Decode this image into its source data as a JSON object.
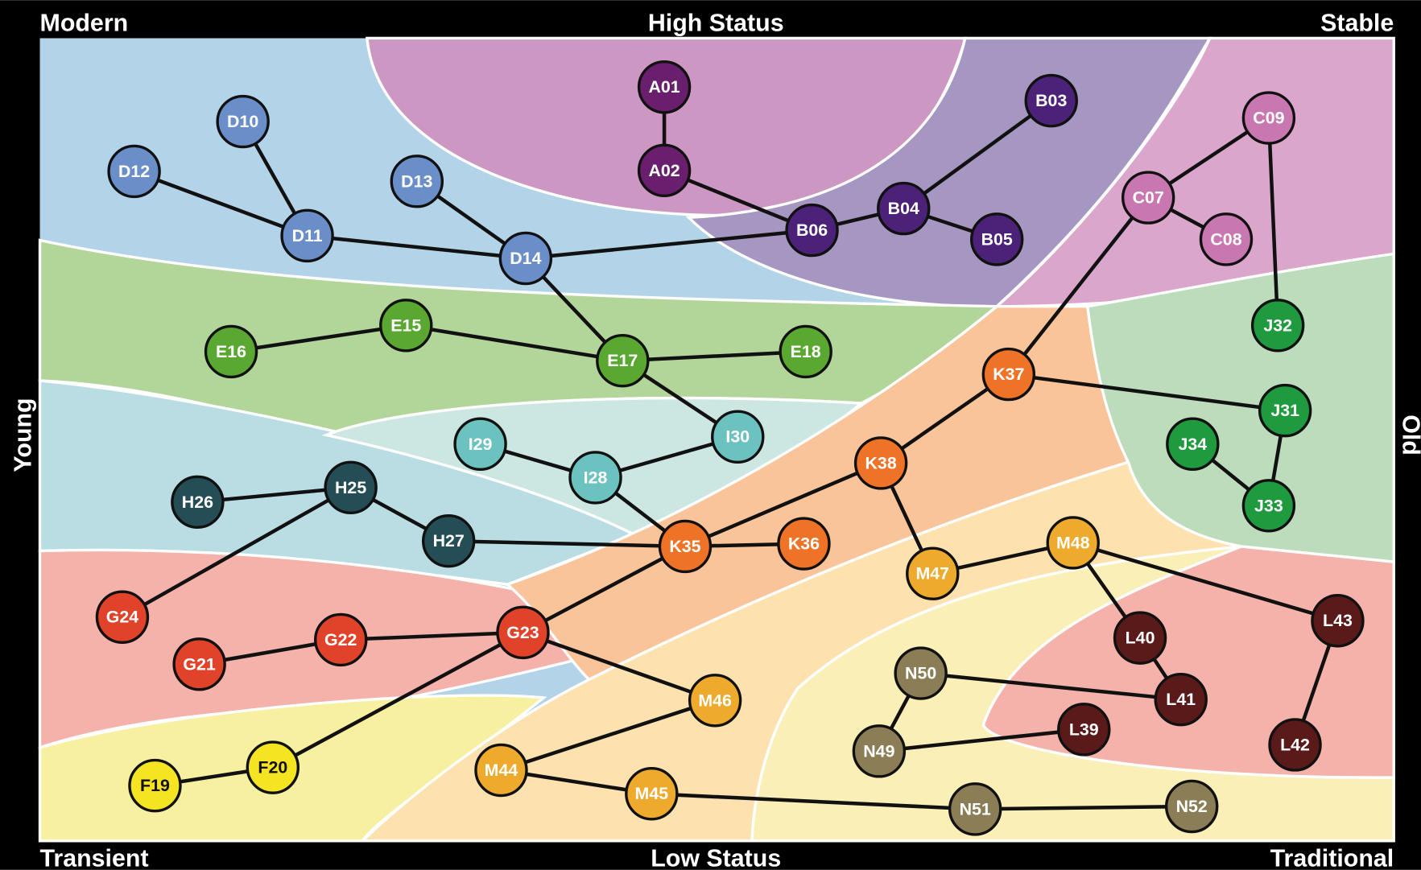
{
  "labels": {
    "top_left": "Modern",
    "top": "High Status",
    "top_right": "Stable",
    "left": "Young",
    "right": "Old",
    "bottom_left": "Transient",
    "bottom": "Low Status",
    "bottom_right": "Traditional"
  },
  "nodes": [
    {
      "label": "A01",
      "color": "#6a1f6e"
    },
    {
      "label": "A02",
      "color": "#6a1f6e"
    },
    {
      "label": "B03",
      "color": "#4b2277"
    },
    {
      "label": "B04",
      "color": "#4b2277"
    },
    {
      "label": "B05",
      "color": "#4b2277"
    },
    {
      "label": "B06",
      "color": "#4b2277"
    },
    {
      "label": "C07",
      "color": "#c877b0"
    },
    {
      "label": "C08",
      "color": "#c877b0"
    },
    {
      "label": "C09",
      "color": "#c877b0"
    },
    {
      "label": "D10",
      "color": "#6a8fc8"
    },
    {
      "label": "D11",
      "color": "#6a8fc8"
    },
    {
      "label": "D12",
      "color": "#6a8fc8"
    },
    {
      "label": "D13",
      "color": "#6a8fc8"
    },
    {
      "label": "D14",
      "color": "#6a8fc8"
    },
    {
      "label": "E15",
      "color": "#5aa832"
    },
    {
      "label": "E16",
      "color": "#5aa832"
    },
    {
      "label": "E17",
      "color": "#5aa832"
    },
    {
      "label": "E18",
      "color": "#5aa832"
    },
    {
      "label": "F19",
      "color": "#f5e422"
    },
    {
      "label": "F20",
      "color": "#f5e422"
    },
    {
      "label": "G21",
      "color": "#e0432a"
    },
    {
      "label": "G22",
      "color": "#e0432a"
    },
    {
      "label": "G23",
      "color": "#e0432a"
    },
    {
      "label": "G24",
      "color": "#e0432a"
    },
    {
      "label": "H25",
      "color": "#254d55"
    },
    {
      "label": "H26",
      "color": "#254d55"
    },
    {
      "label": "H27",
      "color": "#254d55"
    },
    {
      "label": "I28",
      "color": "#6cc2bf"
    },
    {
      "label": "I29",
      "color": "#6cc2bf"
    },
    {
      "label": "I30",
      "color": "#6cc2bf"
    },
    {
      "label": "J31",
      "color": "#1f9a3e"
    },
    {
      "label": "J32",
      "color": "#1f9a3e"
    },
    {
      "label": "J33",
      "color": "#1f9a3e"
    },
    {
      "label": "J34",
      "color": "#1f9a3e"
    },
    {
      "label": "K35",
      "color": "#ee7326"
    },
    {
      "label": "K36",
      "color": "#ee7326"
    },
    {
      "label": "K37",
      "color": "#ee7326"
    },
    {
      "label": "K38",
      "color": "#ee7326"
    },
    {
      "label": "L39",
      "color": "#5a1a1a"
    },
    {
      "label": "L40",
      "color": "#5a1a1a"
    },
    {
      "label": "L41",
      "color": "#5a1a1a"
    },
    {
      "label": "L42",
      "color": "#5a1a1a"
    },
    {
      "label": "L43",
      "color": "#5a1a1a"
    },
    {
      "label": "M44",
      "color": "#eeaa2c"
    },
    {
      "label": "M45",
      "color": "#eeaa2c"
    },
    {
      "label": "M46",
      "color": "#eeaa2c"
    },
    {
      "label": "M47",
      "color": "#eeaa2c"
    },
    {
      "label": "M48",
      "color": "#eeaa2c"
    },
    {
      "label": "N49",
      "color": "#8b7d56"
    },
    {
      "label": "N50",
      "color": "#8b7d56"
    },
    {
      "label": "N51",
      "color": "#8b7d56"
    },
    {
      "label": "N52",
      "color": "#8b7d56"
    }
  ]
}
